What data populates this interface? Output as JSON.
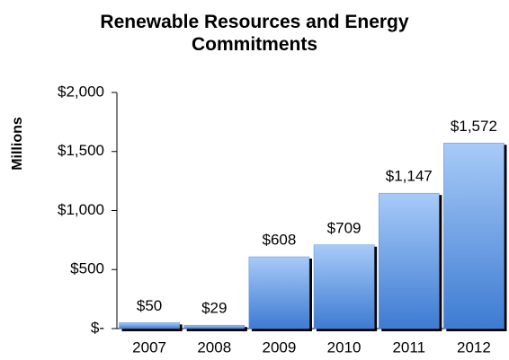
{
  "chart_data": {
    "type": "bar",
    "title": "Renewable Resources and Energy Commitments",
    "y_label": "Millions",
    "categories": [
      "2007",
      "2008",
      "2009",
      "2010",
      "2011",
      "2012"
    ],
    "values": [
      50,
      29,
      608,
      709,
      1147,
      1572
    ],
    "value_labels": [
      "$50",
      "$29",
      "$608",
      "$709",
      "$1,147",
      "$1,572"
    ],
    "color": "#5f99e6",
    "ylim": [
      0,
      2000
    ],
    "yticks": [
      {
        "value": 0,
        "label": "$-"
      },
      {
        "value": 500,
        "label": "$500"
      },
      {
        "value": 1000,
        "label": "$1,000"
      },
      {
        "value": 1500,
        "label": "$1,500"
      },
      {
        "value": 2000,
        "label": "$2,000"
      }
    ],
    "grid": false
  }
}
